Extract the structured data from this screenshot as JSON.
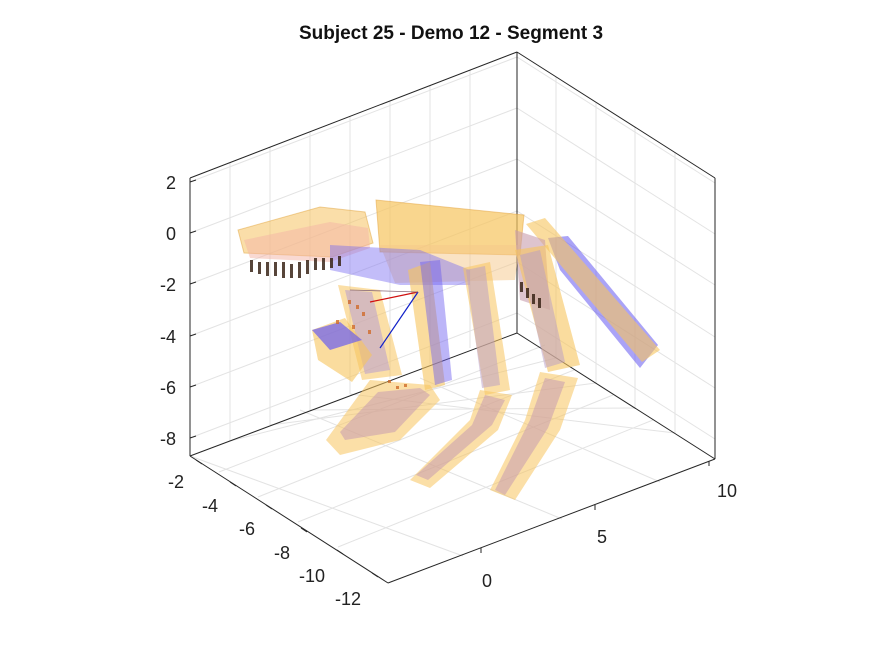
{
  "chart_data": {
    "type": "3d-scene",
    "title": "Subject 25 - Demo 12 - Segment 3",
    "z_axis": {
      "ticks": [
        "2",
        "0",
        "-2",
        "-4",
        "-6",
        "-8"
      ],
      "range": [
        -8.5,
        2.5
      ]
    },
    "y_axis": {
      "ticks": [
        "-2",
        "-4",
        "-6",
        "-8",
        "-10",
        "-12"
      ],
      "range": [
        -12.5,
        -2
      ]
    },
    "x_axis": {
      "ticks": [
        "0",
        "5",
        "10"
      ],
      "range": [
        -2.5,
        10.5
      ]
    },
    "grid": true,
    "box": "full",
    "colors": {
      "hand_link": "#f7c55a",
      "hand_link_inner": "#f3a7a0",
      "palm_plate": "#6a5cf0",
      "contact_markers": "#3a2418",
      "finger_base_marker": "#d06b2a",
      "frame_x": "#d01010",
      "frame_y": "#1020c8"
    }
  }
}
